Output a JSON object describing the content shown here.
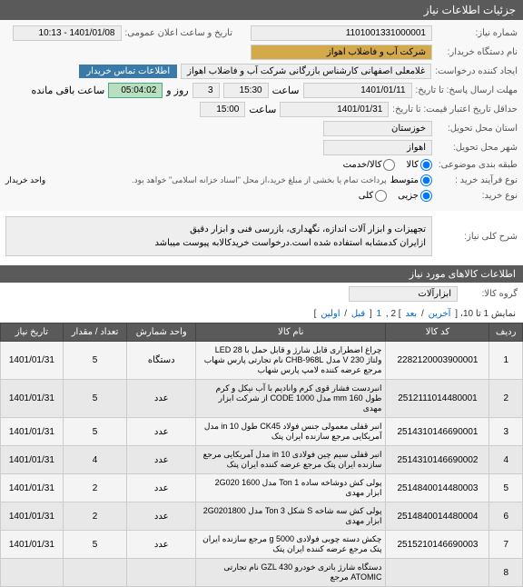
{
  "header": {
    "title": "جزئیات اطلاعات نیاز"
  },
  "form": {
    "need_no_label": "شماره نیاز:",
    "need_no": "1101001331000001",
    "announce_label": "تاریخ و ساعت اعلان عمومی:",
    "announce_val": "1401/01/08 - 10:13",
    "buyer_label": "نام دستگاه خریدار:",
    "buyer_val": "شرکت آب و فاضلاب اهواز",
    "creator_label": "ایجاد کننده درخواست:",
    "creator_val": "غلامعلی اصفهانی کارشناس بازرگانی شرکت آب و فاضلاب اهواز",
    "contact_btn": "اطلاعات تماس خریدار",
    "deadline_label": "مهلت ارسال پاسخ: تا تاریخ:",
    "deadline_date": "1401/01/11",
    "time_label": "ساعت",
    "deadline_time": "15:30",
    "days_label": "روز و",
    "days_val": "3",
    "remain_label": "ساعت باقی مانده",
    "remain_val": "05:04:02",
    "credit_label": "حداقل تاریخ اعتبار قیمت: تا تاریخ:",
    "credit_date": "1401/01/31",
    "credit_time": "15:00",
    "province_label": "استان محل تحویل:",
    "province_val": "خوزستان",
    "city_label": "شهر محل تحویل:",
    "city_val": "اهواز",
    "category_label": "طبقه بندی موضوعی:",
    "cat_goods": "کالا",
    "cat_service": "کالا/خدمت",
    "process_label": "نوع فرآیند خرید :",
    "proc_medium": "متوسط",
    "proc_note": "پرداخت تمام یا بخشی از مبلغ خرید،از محل \"اسناد خزانه اسلامی\" خواهد بود.",
    "unit_label": "واحد خریدار",
    "purchase_label": "نوع خرید:",
    "buy_single": "جزیی",
    "buy_bulk": "کلی"
  },
  "summary": {
    "title_label": "شرح کلی نیاز:",
    "desc1": "تجهیزات و ابزار آلات اندازه، نگهداری، بازرسی فنی و ابزار دقیق",
    "desc2": "ازایران کدمشابه استفاده شده است.درخواست خریدکالابه پیوست میباشد"
  },
  "items": {
    "section_title": "اطلاعات کالاهای مورد نیاز",
    "group_label": "گروه کالا:",
    "group_val": "ابزارآلات",
    "pagination_text": "نمایش 1 تا 10، [ آخرین / بعد ] 2 ,1 [ قبل / اولین]",
    "pag_last": "آخرین",
    "pag_next": "بعد",
    "pag_prev": "قبل",
    "pag_first": "اولین",
    "pag_pre": "نمایش 1 تا 10، [ ",
    "pag_sep1": " / ",
    "pag_mid": " ] 2 ,",
    "pag_one": "1",
    "pag_sep2": " [ ",
    "pag_end": "]",
    "cols": {
      "row": "ردیف",
      "code": "کد کالا",
      "name": "نام کالا",
      "unit": "واحد شمارش",
      "qty": "تعداد / مقدار",
      "date": "تاریخ نیاز"
    },
    "rows": [
      {
        "n": "1",
        "code": "2282120003900001",
        "name": "چراغ اضطراری قابل شارژ و قابل حمل با LED 28 ولتاژ V 230 مدل CHB-968L نام تجارتی پارس شهاب مرجع عرضه کننده لامپ پارس شهاب",
        "unit": "دستگاه",
        "qty": "5",
        "date": "1401/01/31"
      },
      {
        "n": "2",
        "code": "2512111014480001",
        "name": "انبردست فشار قوی کرم وانادیم با آب نیکل و کرم طول 160 mm مدل CODE 1000 از شرکت ابزار مهدی",
        "unit": "عدد",
        "qty": "5",
        "date": "1401/01/31"
      },
      {
        "n": "3",
        "code": "2514310146690001",
        "name": "انبر قفلی معمولی جنس فولاد CK45 طول in 10 مدل آمریکایی مرجع سازنده ایران پتک",
        "unit": "عدد",
        "qty": "5",
        "date": "1401/01/31"
      },
      {
        "n": "4",
        "code": "2514310146690002",
        "name": "انبر قفلی سیم چین فولادی in 10 مدل آمریکایی مرجع سازنده ایران پتک مرجع عرضه کننده ایران پتک",
        "unit": "عدد",
        "qty": "4",
        "date": "1401/01/31"
      },
      {
        "n": "5",
        "code": "2514840014480003",
        "name": "پولی کش دوشاخه ساده Ton 1 مدل 2G020 1600 ابزار مهدی",
        "unit": "عدد",
        "qty": "2",
        "date": "1401/01/31"
      },
      {
        "n": "6",
        "code": "2514840014480004",
        "name": "پولی کش سه شاخه S شکل Ton 3 مدل 2G0201800 ابزار مهدی",
        "unit": "عدد",
        "qty": "2",
        "date": "1401/01/31"
      },
      {
        "n": "7",
        "code": "2515210146690003",
        "name": "چکش دسته چوبی فولادی g 5000 مرجع سازنده ایران پتک مرجع عرضه کننده ایران پتک",
        "unit": "عدد",
        "qty": "5",
        "date": "1401/01/31"
      },
      {
        "n": "8",
        "code": "",
        "name": "دستگاه شارژ باتری خودرو GZL 430 نام تجارتی ATOMIC مرجع",
        "unit": "",
        "qty": "",
        "date": ""
      }
    ]
  }
}
